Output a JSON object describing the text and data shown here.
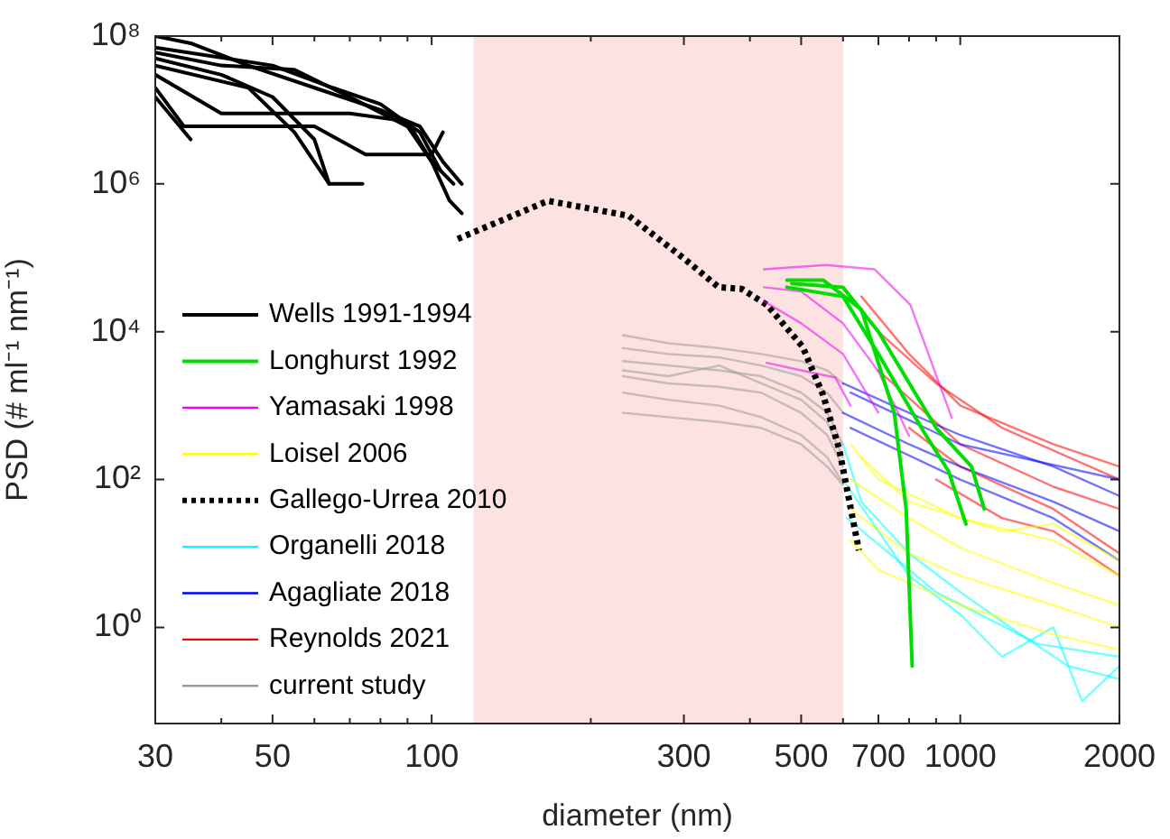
{
  "chart_data": {
    "type": "line",
    "xlabel": "diameter (nm)",
    "ylabel": "PSD (# ml⁻¹ nm⁻¹)",
    "log": "xy",
    "xlim": [
      30,
      2000
    ],
    "ylim": [
      0.05,
      100000000
    ],
    "xticks": [
      30,
      {
        "value": 40,
        "label": null
      },
      50,
      {
        "value": 60,
        "label": null
      },
      {
        "value": 70,
        "label": null
      },
      {
        "value": 80,
        "label": null
      },
      {
        "value": 90,
        "label": null
      },
      100,
      {
        "value": 200,
        "label": null
      },
      300,
      {
        "value": 400,
        "label": null
      },
      500,
      {
        "value": 600,
        "label": null
      },
      700,
      {
        "value": 800,
        "label": null
      },
      {
        "value": 900,
        "label": null
      },
      1000,
      2000
    ],
    "yticks": [
      {
        "value": 1,
        "label": "10⁰"
      },
      {
        "value": 100,
        "label": "10²"
      },
      {
        "value": 10000,
        "label": "10⁴"
      },
      {
        "value": 1000000,
        "label": "10⁶"
      },
      {
        "value": 100000000,
        "label": "10⁸"
      }
    ],
    "grid": false,
    "legend": "bottom left",
    "bands": [
      {
        "axis": "x",
        "from": 120,
        "to": 600,
        "color": "#fde2e2"
      }
    ],
    "series": [
      {
        "name": "Wells 1991-1994",
        "color": "#000000",
        "x": [
          30,
          35,
          45,
          60,
          80,
          95,
          105,
          114
        ],
        "values": [
          100000000,
          80000000,
          40000000,
          20000000,
          10000000,
          6000000,
          2000000,
          1000000
        ]
      },
      {
        "color": "#000000",
        "x": [
          30,
          40,
          55,
          70,
          90,
          100,
          108,
          114
        ],
        "values": [
          60000000,
          40000000,
          35000000,
          15000000,
          6000000,
          2000000,
          600000,
          400000
        ]
      },
      {
        "color": "#000000",
        "x": [
          30,
          40,
          50,
          60,
          64,
          74
        ],
        "values": [
          50000000,
          30000000,
          15000000,
          4000000,
          1000000,
          1000000
        ]
      },
      {
        "color": "#000000",
        "x": [
          30,
          45,
          55,
          64
        ],
        "values": [
          40000000,
          20000000,
          5000000,
          1000000
        ]
      },
      {
        "color": "#000000",
        "x": [
          30,
          34,
          60,
          75,
          100,
          105
        ],
        "values": [
          20000000,
          6000000,
          6000000,
          2500000,
          2500000,
          5000000
        ]
      },
      {
        "color": "#000000",
        "x": [
          30,
          35
        ],
        "values": [
          15000000,
          4000000
        ]
      },
      {
        "color": "#000000",
        "x": [
          30,
          40,
          70,
          90,
          100,
          110
        ],
        "values": [
          30000000,
          9000000,
          9000000,
          7000000,
          2000000,
          1000000
        ]
      },
      {
        "color": "#000000",
        "x": [
          30,
          50,
          65,
          80,
          95,
          104
        ],
        "values": [
          70000000,
          40000000,
          20000000,
          12000000,
          5000000,
          1500000
        ]
      },
      {
        "name": "Longhurst 1992",
        "color": "#00dd00",
        "x": [
          470,
          550,
          650,
          750,
          790,
          811
        ],
        "values": [
          50000,
          50000,
          20000,
          800,
          40,
          0.3
        ]
      },
      {
        "color": "#00dd00",
        "x": [
          470,
          600,
          700,
          850,
          950,
          1025
        ],
        "values": [
          40000,
          30000,
          5000,
          460,
          130,
          25
        ]
      },
      {
        "color": "#00dd00",
        "x": [
          480,
          600,
          700,
          900,
          1050,
          1110
        ],
        "values": [
          45000,
          40000,
          10000,
          500,
          150,
          40
        ]
      },
      {
        "name": "Yamasaki 1998",
        "color": "#ee00ee",
        "x": [
          425,
          557,
          688,
          805,
          964
        ],
        "values": [
          70000,
          80000,
          70000,
          23000,
          680
        ]
      },
      {
        "color": "#ee00ee",
        "x": [
          425,
          500,
          600,
          700,
          800
        ],
        "values": [
          40000,
          35000,
          13000,
          2900,
          390
        ]
      },
      {
        "color": "#ee00ee",
        "x": [
          425,
          500,
          600,
          700
        ],
        "values": [
          26000,
          13000,
          5000,
          800
        ]
      },
      {
        "color": "#ee00ee",
        "x": [
          430,
          500,
          580,
          620
        ],
        "values": [
          3800,
          3000,
          2400,
          1000
        ]
      },
      {
        "name": "Loisel 2006",
        "color": "#ffff00",
        "x": [
          620,
          700,
          1000,
          1500,
          2000
        ],
        "values": [
          300,
          100,
          30,
          15,
          5
        ]
      },
      {
        "color": "#ffff00",
        "x": [
          620,
          800,
          1000,
          1500,
          2000
        ],
        "values": [
          100,
          30,
          12,
          4,
          2
        ]
      },
      {
        "color": "#ffff00",
        "x": [
          620,
          800,
          1000,
          1500,
          2000
        ],
        "values": [
          40,
          10,
          5,
          2,
          1
        ]
      },
      {
        "color": "#ffff00",
        "x": [
          620,
          700,
          1000,
          1500,
          2000
        ],
        "values": [
          15,
          6,
          2,
          0.8,
          0.5
        ]
      },
      {
        "color": "#ffff00",
        "x": [
          650,
          800,
          1200,
          1500,
          2000
        ],
        "values": [
          200,
          50,
          20,
          25,
          8
        ]
      },
      {
        "name": "Gallego-Urrea 2010",
        "color": "#000000",
        "line_style": "dotted",
        "x": [
          112,
          166,
          236,
          299,
          349,
          386,
          431,
          503,
          550,
          590,
          611,
          643
        ],
        "values": [
          180000,
          590000,
          370000,
          100000,
          40000,
          38000,
          23000,
          6300,
          1400,
          260,
          72,
          11
        ]
      },
      {
        "name": "Organelli 2018",
        "color": "#00ffff",
        "x": [
          600,
          650,
          800,
          1000,
          1300,
          1600,
          2000
        ],
        "values": [
          300,
          50,
          10,
          3,
          0.8,
          0.3,
          0.2
        ]
      },
      {
        "color": "#00ffff",
        "x": [
          600,
          800,
          1000,
          1200,
          1500,
          1700,
          2000
        ],
        "values": [
          100,
          5,
          1.5,
          0.4,
          1,
          0.1,
          0.3
        ]
      },
      {
        "color": "#00ffff",
        "x": [
          610,
          900,
          1400,
          2000
        ],
        "values": [
          30,
          3,
          0.6,
          0.4
        ]
      },
      {
        "name": "Agagliate 2018",
        "color": "#0000ff",
        "x": [
          600,
          800,
          1000,
          1500,
          2000
        ],
        "values": [
          2000,
          800,
          400,
          150,
          60
        ]
      },
      {
        "color": "#0000ff",
        "x": [
          600,
          800,
          1000,
          1500,
          2000
        ],
        "values": [
          800,
          300,
          150,
          50,
          20
        ]
      },
      {
        "color": "#0000ff",
        "x": [
          620,
          1000,
          1500,
          2000
        ],
        "values": [
          500,
          100,
          30,
          8
        ]
      },
      {
        "color": "#0000ff",
        "x": [
          620,
          1000,
          2000
        ],
        "values": [
          1500,
          300,
          100
        ]
      },
      {
        "name": "Reynolds 2021",
        "color": "#ff0000",
        "x": [
          650,
          800,
          1000,
          1500,
          2000
        ],
        "values": [
          30000,
          5000,
          1000,
          300,
          150
        ]
      },
      {
        "color": "#ff0000",
        "x": [
          700,
          900,
          1200,
          2000
        ],
        "values": [
          10000,
          2000,
          500,
          100
        ]
      },
      {
        "color": "#ff0000",
        "x": [
          700,
          1000,
          1500,
          2000
        ],
        "values": [
          3000,
          300,
          80,
          40
        ]
      },
      {
        "color": "#ff0000",
        "x": [
          800,
          1000,
          1500,
          2000
        ],
        "values": [
          500,
          150,
          40,
          10
        ]
      },
      {
        "color": "#ff0000",
        "x": [
          900,
          1200,
          1500,
          2000
        ],
        "values": [
          100,
          30,
          20,
          5
        ]
      },
      {
        "name": "current study",
        "color": "#999999",
        "x": [
          230,
          280,
          350,
          420,
          500,
          560,
          600
        ],
        "values": [
          9000,
          7000,
          6000,
          5000,
          4000,
          3000,
          2000
        ]
      },
      {
        "color": "#999999",
        "x": [
          230,
          280,
          350,
          420,
          500,
          560,
          600
        ],
        "values": [
          6000,
          5000,
          4500,
          3500,
          2500,
          1500,
          800
        ]
      },
      {
        "color": "#999999",
        "x": [
          230,
          280,
          350,
          420,
          500,
          560,
          600
        ],
        "values": [
          4000,
          3500,
          3000,
          2500,
          1500,
          800,
          300
        ]
      },
      {
        "color": "#999999",
        "x": [
          230,
          280,
          350,
          420,
          500,
          560,
          600
        ],
        "values": [
          2500,
          2000,
          1800,
          1500,
          800,
          400,
          150
        ]
      },
      {
        "color": "#999999",
        "x": [
          230,
          280,
          350,
          420,
          500,
          560,
          600
        ],
        "values": [
          1500,
          1200,
          1000,
          700,
          400,
          200,
          90
        ]
      },
      {
        "color": "#999999",
        "x": [
          230,
          280,
          350,
          420,
          500,
          560,
          600
        ],
        "values": [
          800,
          700,
          600,
          500,
          300,
          150,
          85
        ]
      },
      {
        "color": "#999999",
        "x": [
          230,
          280,
          350,
          420,
          500,
          560,
          600
        ],
        "values": [
          3000,
          2500,
          3500,
          2000,
          1200,
          600,
          200
        ]
      }
    ]
  }
}
